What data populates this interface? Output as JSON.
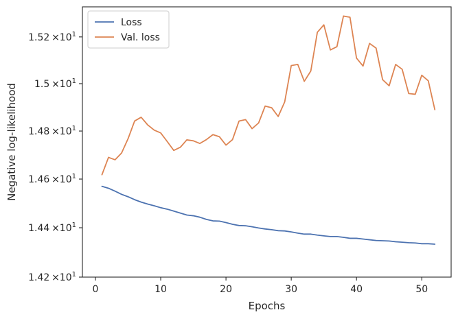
{
  "chart_data": {
    "type": "line",
    "title": "",
    "xlabel": "Epochs",
    "ylabel": "Negative log-likelihood",
    "xlim": [
      -2,
      54.5
    ],
    "ylim": [
      14.2,
      15.33
    ],
    "y_scale": "log",
    "grid": false,
    "legend_placement": "top-left",
    "x_ticks": [
      0,
      10,
      20,
      30,
      40,
      50
    ],
    "x_tick_labels": [
      "0",
      "10",
      "20",
      "30",
      "40",
      "50"
    ],
    "y_ticks": [
      14.2,
      14.4,
      14.6,
      14.8,
      15.0,
      15.2
    ],
    "y_tick_labels": [
      {
        "mant": "1.42",
        "exp": "1"
      },
      {
        "mant": "1.44",
        "exp": "1"
      },
      {
        "mant": "1.46",
        "exp": "1"
      },
      {
        "mant": "1.48",
        "exp": "1"
      },
      {
        "mant": "1.5",
        "exp": "1"
      },
      {
        "mant": "1.52",
        "exp": "1"
      }
    ],
    "y_tick_times": "×10",
    "x": [
      1,
      2,
      3,
      4,
      5,
      6,
      7,
      8,
      9,
      10,
      11,
      12,
      13,
      14,
      15,
      16,
      17,
      18,
      19,
      20,
      21,
      22,
      23,
      24,
      25,
      26,
      27,
      28,
      29,
      30,
      31,
      32,
      33,
      34,
      35,
      36,
      37,
      38,
      39,
      40,
      41,
      42,
      43,
      44,
      45,
      46,
      47,
      48,
      49,
      50,
      51,
      52
    ],
    "series": [
      {
        "name": "Loss",
        "color": "#4c72b0",
        "values": [
          14.57,
          14.562,
          14.55,
          14.537,
          14.527,
          14.515,
          14.505,
          14.497,
          14.49,
          14.482,
          14.476,
          14.468,
          14.46,
          14.452,
          14.449,
          14.443,
          14.434,
          14.428,
          14.427,
          14.421,
          14.414,
          14.409,
          14.408,
          14.404,
          14.399,
          14.395,
          14.392,
          14.388,
          14.387,
          14.383,
          14.378,
          14.374,
          14.374,
          14.37,
          14.367,
          14.364,
          14.364,
          14.361,
          14.357,
          14.357,
          14.354,
          14.351,
          14.348,
          14.347,
          14.346,
          14.343,
          14.341,
          14.339,
          14.338,
          14.335,
          14.335,
          14.333
        ]
      },
      {
        "name": "Val. loss",
        "color": "#dd8452",
        "values": [
          14.618,
          14.69,
          14.68,
          14.708,
          14.768,
          14.842,
          14.858,
          14.826,
          14.804,
          14.792,
          14.756,
          14.719,
          14.732,
          14.763,
          14.759,
          14.748,
          14.764,
          14.785,
          14.776,
          14.741,
          14.764,
          14.842,
          14.848,
          14.81,
          14.834,
          14.905,
          14.898,
          14.861,
          14.923,
          15.077,
          15.082,
          15.01,
          15.054,
          15.22,
          15.252,
          15.144,
          15.158,
          15.29,
          15.285,
          15.109,
          15.075,
          15.172,
          15.152,
          15.017,
          14.991,
          15.082,
          15.061,
          14.958,
          14.955,
          15.036,
          15.012,
          14.89
        ]
      }
    ]
  }
}
